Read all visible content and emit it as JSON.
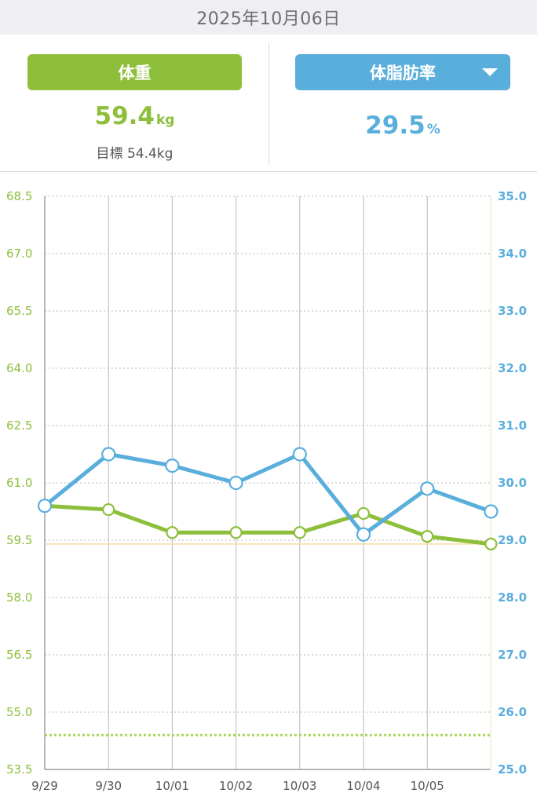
{
  "header": {
    "date": "2025年10月06日"
  },
  "weight_panel": {
    "label": "体重",
    "value": "59.4",
    "unit": "kg",
    "goal_text": "目標 54.4kg"
  },
  "fat_panel": {
    "label": "体脂肪率",
    "value": "29.5",
    "unit": "%",
    "dropdown_icon": "triangle-down"
  },
  "colors": {
    "weight": "#8dbf3b",
    "fat": "#5aaedc",
    "goal_line": "#a8d85a",
    "current_line": "#f2dca0",
    "grid": "#b9b9b9"
  },
  "chart_data": {
    "type": "line",
    "x": [
      "9/29",
      "9/30",
      "10/01",
      "10/02",
      "10/03",
      "10/04",
      "10/05",
      "10/06"
    ],
    "x_tick_labels": [
      "9/29",
      "9/30",
      "10/01",
      "10/02",
      "10/03",
      "10/04",
      "10/05"
    ],
    "left_axis": {
      "ylim": [
        53.5,
        68.5
      ],
      "ticks": [
        "53.5",
        "55.0",
        "56.5",
        "58.0",
        "59.5",
        "61.0",
        "62.5",
        "64.0",
        "65.5",
        "67.0",
        "68.5"
      ]
    },
    "right_axis": {
      "ylim": [
        25.0,
        35.0
      ],
      "ticks": [
        "25.0",
        "26.0",
        "27.0",
        "28.0",
        "29.0",
        "30.0",
        "31.0",
        "32.0",
        "33.0",
        "34.0",
        "35.0"
      ]
    },
    "series": [
      {
        "axis": "left",
        "values": [
          60.4,
          60.3,
          59.7,
          59.7,
          59.7,
          60.2,
          59.6,
          59.4
        ]
      },
      {
        "axis": "right",
        "values": [
          29.6,
          30.5,
          30.3,
          30.0,
          30.5,
          29.1,
          29.9,
          29.5
        ]
      }
    ],
    "goal_value": 54.4,
    "current_value": 59.4,
    "grid": true
  }
}
